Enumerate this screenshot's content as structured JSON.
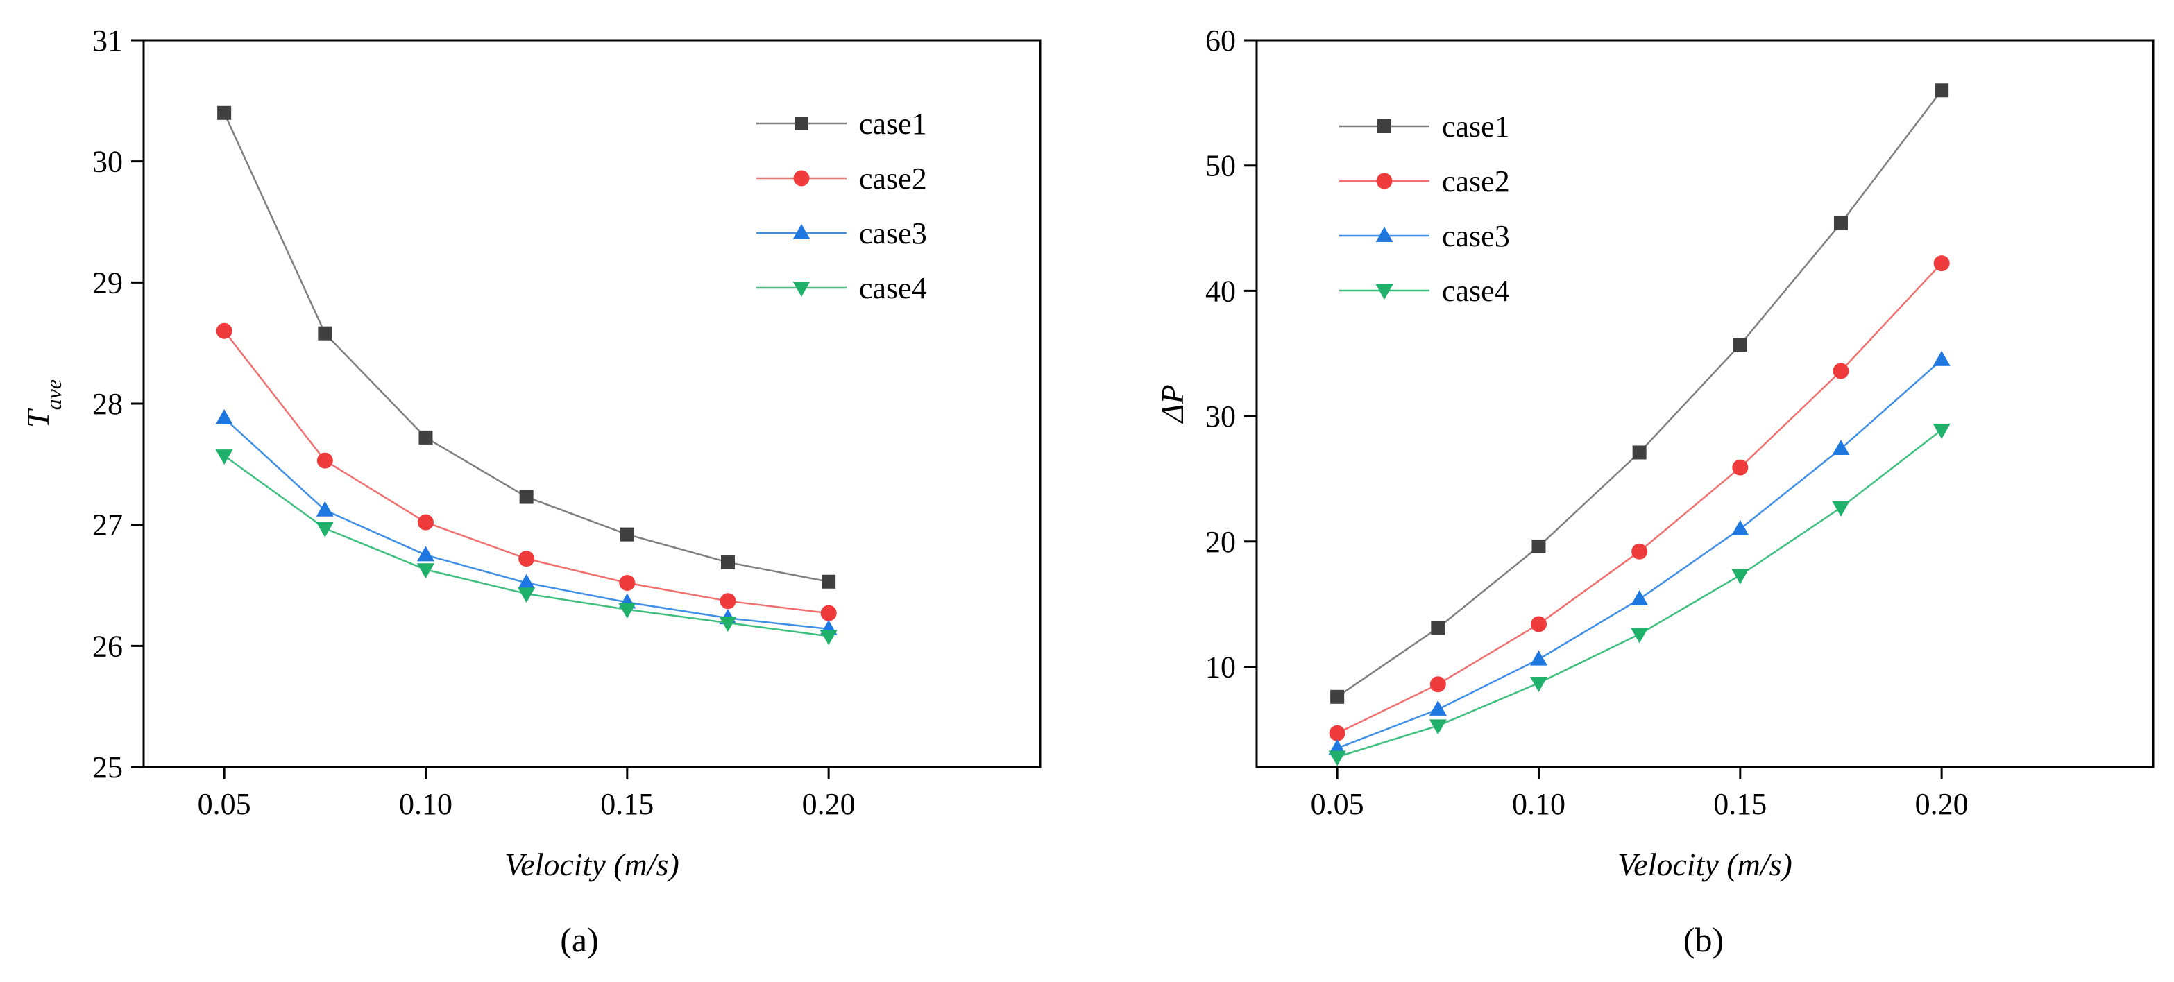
{
  "chart_data": [
    {
      "type": "line",
      "panel_label": "(a)",
      "x": [
        0.05,
        0.075,
        0.1,
        0.125,
        0.15,
        0.175,
        0.2
      ],
      "xlim": [
        0.03,
        0.2525
      ],
      "xticks": [
        0.05,
        0.1,
        0.15,
        0.2
      ],
      "xtick_labels": [
        "0.05",
        "0.10",
        "0.15",
        "0.20"
      ],
      "xlabel": "Velocity  (m/s)",
      "ylabel_main": "T",
      "ylabel_sub": "ave",
      "ylim": [
        25,
        31
      ],
      "yticks": [
        25,
        26,
        27,
        28,
        29,
        30,
        31
      ],
      "ytick_labels": [
        "25",
        "26",
        "27",
        "28",
        "29",
        "30",
        "31"
      ],
      "legend_position": "top-right",
      "series": [
        {
          "name": "case1",
          "marker": "square",
          "color": "#404040",
          "line_color": "#7f7f7f",
          "values": [
            30.4,
            28.58,
            27.72,
            27.23,
            26.92,
            26.69,
            26.53
          ]
        },
        {
          "name": "case2",
          "marker": "circle",
          "color": "#ef3b3b",
          "line_color": "#f07070",
          "values": [
            28.6,
            27.53,
            27.02,
            26.72,
            26.52,
            26.37,
            26.27
          ]
        },
        {
          "name": "case3",
          "marker": "triangle-up",
          "color": "#1f77e0",
          "line_color": "#3f8fe6",
          "values": [
            27.88,
            27.12,
            26.75,
            26.52,
            26.36,
            26.23,
            26.14
          ]
        },
        {
          "name": "case4",
          "marker": "triangle-down",
          "color": "#1fb06a",
          "line_color": "#3fbf7f",
          "values": [
            27.57,
            26.97,
            26.63,
            26.43,
            26.3,
            26.19,
            26.08
          ]
        }
      ]
    },
    {
      "type": "line",
      "panel_label": "(b)",
      "x": [
        0.05,
        0.075,
        0.1,
        0.125,
        0.15,
        0.175,
        0.2
      ],
      "xlim": [
        0.03,
        0.2525
      ],
      "xticks": [
        0.05,
        0.1,
        0.15,
        0.2
      ],
      "xtick_labels": [
        "0.05",
        "0.10",
        "0.15",
        "0.20"
      ],
      "xlabel": "Velocity  (m/s)",
      "ylabel_main": "ΔP",
      "ylabel_sub": "",
      "ylim": [
        2,
        60
      ],
      "yticks": [
        10,
        20,
        30,
        40,
        50,
        60
      ],
      "ytick_labels": [
        "10",
        "20",
        "30",
        "40",
        "50",
        "60"
      ],
      "legend_position": "top-left",
      "series": [
        {
          "name": "case1",
          "marker": "square",
          "color": "#404040",
          "line_color": "#7f7f7f",
          "values": [
            7.6,
            13.1,
            19.6,
            27.1,
            35.7,
            45.4,
            56.0
          ]
        },
        {
          "name": "case2",
          "marker": "circle",
          "color": "#ef3b3b",
          "line_color": "#f07070",
          "values": [
            4.7,
            8.6,
            13.4,
            19.2,
            25.9,
            33.6,
            42.2
          ]
        },
        {
          "name": "case3",
          "marker": "triangle-up",
          "color": "#1f77e0",
          "line_color": "#3f8fe6",
          "values": [
            3.5,
            6.6,
            10.6,
            15.4,
            21.0,
            27.4,
            34.5
          ]
        },
        {
          "name": "case4",
          "marker": "triangle-down",
          "color": "#1fb06a",
          "line_color": "#3fbf7f",
          "values": [
            2.8,
            5.3,
            8.7,
            12.6,
            17.3,
            22.7,
            28.9
          ]
        }
      ]
    }
  ]
}
